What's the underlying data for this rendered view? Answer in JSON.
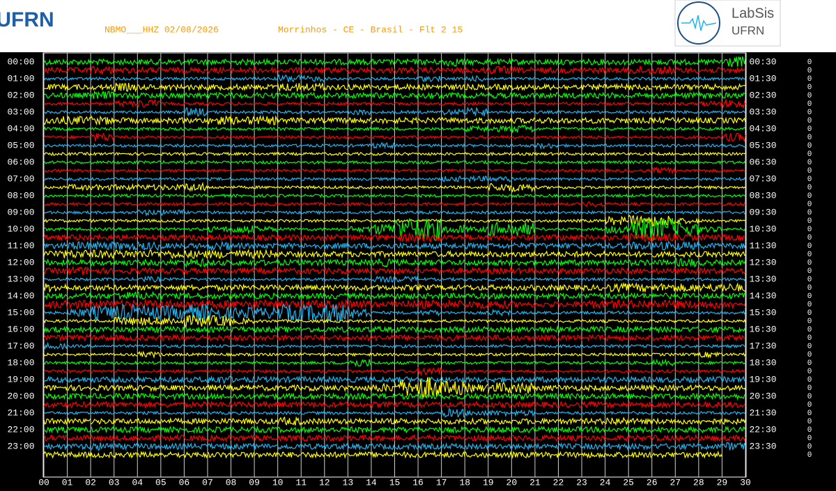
{
  "header": {
    "station": "NBMO___HHZ 02/08/2026",
    "location": "Morrinhos - CE - Brasil - Flt 2 15",
    "left_logo": "UFRN",
    "right_logo": "LabSis",
    "right_logo_sub": "UFRN"
  },
  "chart_data": {
    "type": "helicorder",
    "left_labels": [
      "00:00",
      "01:00",
      "02:00",
      "03:00",
      "04:00",
      "05:00",
      "06:00",
      "07:00",
      "08:00",
      "09:00",
      "10:00",
      "11:00",
      "12:00",
      "13:00",
      "14:00",
      "15:00",
      "16:00",
      "17:00",
      "18:00",
      "19:00",
      "20:00",
      "21:00",
      "22:00",
      "23:00"
    ],
    "right_labels": [
      "00:30",
      "01:30",
      "02:30",
      "03:30",
      "04:30",
      "05:30",
      "06:30",
      "07:30",
      "08:30",
      "09:30",
      "10:30",
      "11:30",
      "12:30",
      "13:30",
      "14:30",
      "15:30",
      "16:30",
      "17:30",
      "18:30",
      "19:30",
      "20:30",
      "21:30",
      "22:30",
      "23:30"
    ],
    "right_values": [
      0,
      0,
      0,
      0,
      0,
      0,
      0,
      0,
      0,
      0,
      0,
      0,
      0,
      0,
      0,
      0,
      0,
      0,
      0,
      0,
      0,
      0,
      0,
      0,
      0,
      0,
      0,
      0,
      0,
      0,
      0,
      0,
      0,
      0,
      0,
      0,
      0,
      0,
      0,
      0,
      0,
      0,
      0,
      0,
      0,
      0,
      0,
      0
    ],
    "xlim": [
      0,
      30
    ],
    "xticks": [
      {
        "value": 0,
        "label": "00"
      },
      {
        "value": 1,
        "label": "01"
      },
      {
        "value": 2,
        "label": "02"
      },
      {
        "value": 3,
        "label": "03"
      },
      {
        "value": 4,
        "label": "04"
      },
      {
        "value": 5,
        "label": "05"
      },
      {
        "value": 6,
        "label": "06"
      },
      {
        "value": 7,
        "label": "07"
      },
      {
        "value": 8,
        "label": "08"
      },
      {
        "value": 9,
        "label": "09"
      },
      10,
      11,
      12,
      13,
      14,
      15,
      16,
      17,
      18,
      19,
      20,
      21,
      22,
      23,
      24,
      25,
      26,
      27,
      28,
      29,
      30
    ],
    "grid": true,
    "colors": [
      "#00ff00",
      "#ff0000",
      "#1eb4f0",
      "#ffff00"
    ],
    "traces": [
      [
        2,
        2,
        2,
        2,
        2,
        2,
        2,
        2,
        2,
        2,
        2,
        2,
        2,
        2,
        2,
        2,
        2,
        3,
        2,
        2,
        2,
        2,
        2,
        2,
        2,
        2,
        2,
        2,
        2,
        4
      ],
      [
        2,
        2,
        3,
        2,
        2,
        2,
        2,
        2,
        2,
        2,
        2,
        2,
        2,
        2,
        2,
        2,
        2,
        2,
        2,
        3,
        2,
        2,
        2,
        2,
        2,
        3,
        3,
        2,
        2,
        2
      ],
      [
        1,
        1,
        1,
        1,
        1,
        1,
        1,
        1,
        1,
        1,
        3,
        2,
        1,
        1,
        1,
        1,
        2,
        1,
        2,
        1,
        1,
        1,
        1,
        1,
        1,
        1,
        1,
        1,
        1,
        1
      ],
      [
        2,
        2,
        2,
        3,
        2,
        2,
        2,
        2,
        2,
        2,
        3,
        3,
        2,
        2,
        2,
        2,
        2,
        2,
        2,
        2,
        2,
        2,
        2,
        2,
        2,
        2,
        2,
        2,
        2,
        2
      ],
      [
        2,
        2,
        3,
        2,
        2,
        2,
        2,
        2,
        2,
        2,
        2,
        2,
        2,
        2,
        2,
        2,
        2,
        2,
        2,
        2,
        2,
        2,
        2,
        2,
        2,
        2,
        2,
        2,
        2,
        2
      ],
      [
        1,
        1,
        1,
        2,
        3,
        1,
        1,
        1,
        1,
        1,
        1,
        1,
        1,
        1,
        1,
        1,
        1,
        1,
        1,
        1,
        1,
        1,
        1,
        1,
        1,
        1,
        1,
        1,
        2,
        3
      ],
      [
        1,
        1,
        1,
        1,
        1,
        1,
        3,
        1,
        1,
        1,
        1,
        1,
        1,
        2,
        1,
        1,
        1,
        2,
        3,
        1,
        1,
        1,
        1,
        1,
        1,
        1,
        1,
        1,
        1,
        1
      ],
      [
        3,
        3,
        3,
        2,
        2,
        2,
        2,
        3,
        3,
        3,
        2,
        2,
        2,
        2,
        2,
        2,
        2,
        2,
        2,
        2,
        2,
        2,
        2,
        2,
        2,
        2,
        2,
        2,
        2,
        2
      ],
      [
        1,
        1,
        1,
        1,
        1,
        1,
        1,
        1,
        1,
        1,
        1,
        1,
        1,
        1,
        1,
        1,
        1,
        1,
        2,
        2,
        3,
        1,
        1,
        1,
        1,
        1,
        1,
        1,
        1,
        1
      ],
      [
        1,
        1,
        3,
        1,
        1,
        1,
        1,
        1,
        1,
        1,
        1,
        1,
        1,
        1,
        1,
        1,
        1,
        1,
        1,
        1,
        1,
        1,
        1,
        1,
        1,
        1,
        1,
        1,
        1,
        3
      ],
      [
        1,
        1,
        1,
        1,
        1,
        1,
        1,
        1,
        1,
        1,
        1,
        1,
        1,
        1,
        2,
        1,
        1,
        1,
        1,
        1,
        1,
        2,
        1,
        1,
        1,
        1,
        1,
        1,
        1,
        1
      ],
      [
        1,
        1,
        1,
        1,
        1,
        1,
        1,
        1,
        1,
        1,
        1,
        1,
        1,
        1,
        1,
        1,
        1,
        1,
        1,
        1,
        1,
        1,
        1,
        1,
        1,
        1,
        1,
        1,
        1,
        1
      ],
      [
        1,
        1,
        1,
        1,
        1,
        1,
        1,
        1,
        1,
        1,
        1,
        1,
        1,
        1,
        1,
        1,
        1,
        1,
        1,
        1,
        1,
        1,
        1,
        1,
        1,
        1,
        1,
        1,
        1,
        1
      ],
      [
        1,
        1,
        1,
        1,
        1,
        1,
        1,
        1,
        1,
        1,
        1,
        1,
        1,
        1,
        1,
        1,
        1,
        1,
        1,
        1,
        1,
        1,
        1,
        1,
        1,
        1,
        2,
        1,
        1,
        1
      ],
      [
        1,
        1,
        1,
        1,
        1,
        1,
        1,
        1,
        1,
        1,
        1,
        1,
        1,
        1,
        1,
        1,
        1,
        2,
        2,
        2,
        1,
        1,
        1,
        1,
        1,
        1,
        1,
        1,
        1,
        1
      ],
      [
        1,
        2,
        2,
        2,
        2,
        2,
        3,
        1,
        1,
        1,
        1,
        1,
        1,
        1,
        1,
        1,
        1,
        1,
        1,
        3,
        3,
        1,
        1,
        1,
        1,
        1,
        1,
        1,
        1,
        1
      ],
      [
        1,
        1,
        1,
        1,
        1,
        1,
        1,
        1,
        1,
        1,
        1,
        1,
        1,
        1,
        1,
        1,
        1,
        1,
        1,
        1,
        1,
        1,
        1,
        1,
        1,
        1,
        1,
        1,
        1,
        1
      ],
      [
        1,
        1,
        1,
        1,
        1,
        1,
        1,
        1,
        1,
        1,
        1,
        1,
        1,
        1,
        1,
        1,
        1,
        1,
        1,
        1,
        1,
        1,
        1,
        2,
        1,
        1,
        1,
        1,
        1,
        1
      ],
      [
        1,
        1,
        1,
        1,
        2,
        2,
        1,
        1,
        1,
        1,
        1,
        1,
        1,
        1,
        1,
        1,
        1,
        1,
        1,
        1,
        1,
        1,
        1,
        1,
        1,
        1,
        1,
        1,
        1,
        1
      ],
      [
        1,
        1,
        1,
        1,
        1,
        1,
        1,
        1,
        1,
        1,
        1,
        1,
        1,
        1,
        1,
        1,
        1,
        1,
        1,
        1,
        1,
        1,
        1,
        1,
        3,
        4,
        4,
        2,
        1,
        1
      ],
      [
        1,
        1,
        1,
        1,
        1,
        1,
        1,
        2,
        3,
        2,
        1,
        1,
        1,
        2,
        4,
        8,
        8,
        3,
        2,
        5,
        5,
        1,
        1,
        1,
        3,
        8,
        8,
        5,
        2,
        1
      ],
      [
        2,
        2,
        2,
        2,
        2,
        2,
        2,
        2,
        2,
        2,
        2,
        2,
        2,
        2,
        2,
        3,
        3,
        2,
        2,
        2,
        2,
        2,
        2,
        2,
        2,
        3,
        3,
        2,
        2,
        2
      ],
      [
        2,
        3,
        3,
        3,
        3,
        2,
        2,
        3,
        2,
        2,
        2,
        2,
        2,
        2,
        2,
        2,
        2,
        2,
        2,
        2,
        2,
        2,
        2,
        2,
        2,
        3,
        3,
        3,
        2,
        2
      ],
      [
        3,
        3,
        3,
        3,
        3,
        3,
        3,
        3,
        3,
        3,
        2,
        2,
        2,
        2,
        2,
        2,
        2,
        2,
        2,
        2,
        2,
        2,
        2,
        2,
        2,
        2,
        2,
        2,
        2,
        2
      ],
      [
        2,
        2,
        2,
        2,
        2,
        2,
        3,
        2,
        2,
        2,
        2,
        2,
        2,
        2,
        3,
        2,
        2,
        2,
        2,
        2,
        2,
        2,
        2,
        2,
        2,
        2,
        2,
        3,
        2,
        2
      ],
      [
        2,
        3,
        2,
        2,
        2,
        2,
        2,
        2,
        2,
        2,
        2,
        2,
        2,
        2,
        2,
        2,
        2,
        2,
        2,
        2,
        2,
        2,
        2,
        2,
        2,
        2,
        2,
        2,
        2,
        2
      ],
      [
        1,
        1,
        1,
        1,
        2,
        1,
        1,
        1,
        1,
        1,
        1,
        1,
        1,
        1,
        2,
        2,
        1,
        1,
        1,
        1,
        1,
        1,
        1,
        1,
        1,
        1,
        1,
        1,
        1,
        1
      ],
      [
        3,
        2,
        2,
        2,
        2,
        2,
        2,
        2,
        2,
        2,
        2,
        2,
        2,
        2,
        2,
        2,
        2,
        2,
        2,
        2,
        2,
        2,
        2,
        2,
        3,
        3,
        3,
        3,
        3,
        3
      ],
      [
        2,
        2,
        2,
        3,
        3,
        2,
        2,
        2,
        2,
        2,
        2,
        2,
        2,
        2,
        2,
        2,
        2,
        2,
        2,
        2,
        2,
        2,
        2,
        2,
        2,
        2,
        2,
        2,
        2,
        2
      ],
      [
        3,
        3,
        3,
        3,
        3,
        3,
        3,
        3,
        3,
        3,
        3,
        3,
        3,
        3,
        2,
        3,
        3,
        3,
        3,
        3,
        2,
        2,
        2,
        3,
        3,
        3,
        3,
        3,
        3,
        3
      ],
      [
        1,
        3,
        5,
        6,
        5,
        5,
        6,
        5,
        4,
        4,
        6,
        6,
        7,
        4,
        1,
        1,
        2,
        1,
        1,
        2,
        1,
        1,
        1,
        1,
        1,
        1,
        1,
        1,
        1,
        1
      ],
      [
        1,
        1,
        1,
        3,
        3,
        3,
        4,
        4,
        2,
        1,
        1,
        1,
        1,
        1,
        1,
        1,
        1,
        1,
        1,
        1,
        1,
        1,
        1,
        1,
        1,
        1,
        1,
        1,
        1,
        1
      ],
      [
        2,
        2,
        2,
        2,
        2,
        2,
        2,
        2,
        2,
        2,
        2,
        2,
        2,
        2,
        2,
        2,
        2,
        2,
        2,
        2,
        2,
        2,
        2,
        2,
        2,
        2,
        2,
        2,
        2,
        2
      ],
      [
        2,
        2,
        2,
        2,
        2,
        2,
        2,
        2,
        2,
        2,
        2,
        2,
        2,
        2,
        2,
        2,
        2,
        2,
        2,
        2,
        2,
        2,
        2,
        2,
        2,
        2,
        2,
        2,
        2,
        2
      ],
      [
        2,
        1,
        1,
        1,
        1,
        1,
        1,
        1,
        1,
        1,
        1,
        1,
        1,
        1,
        1,
        1,
        1,
        1,
        1,
        1,
        1,
        1,
        1,
        1,
        1,
        1,
        1,
        1,
        1,
        1
      ],
      [
        1,
        1,
        1,
        1,
        2,
        1,
        1,
        1,
        1,
        1,
        1,
        1,
        1,
        1,
        1,
        1,
        1,
        1,
        1,
        1,
        1,
        1,
        1,
        1,
        1,
        1,
        1,
        1,
        2,
        1
      ],
      [
        1,
        1,
        1,
        1,
        1,
        1,
        1,
        1,
        1,
        1,
        1,
        1,
        1,
        3,
        1,
        1,
        1,
        1,
        1,
        1,
        1,
        1,
        1,
        1,
        1,
        1,
        2,
        1,
        1,
        1
      ],
      [
        1,
        1,
        1,
        1,
        1,
        1,
        1,
        1,
        1,
        1,
        1,
        1,
        1,
        1,
        1,
        1,
        3,
        1,
        1,
        1,
        1,
        1,
        1,
        1,
        1,
        1,
        1,
        1,
        1,
        1
      ],
      [
        2,
        2,
        2,
        2,
        2,
        2,
        2,
        3,
        2,
        2,
        2,
        2,
        2,
        2,
        2,
        2,
        2,
        2,
        2,
        2,
        2,
        2,
        2,
        2,
        2,
        2,
        2,
        2,
        2,
        2
      ],
      [
        2,
        2,
        2,
        2,
        2,
        2,
        2,
        2,
        2,
        2,
        2,
        2,
        2,
        2,
        3,
        6,
        8,
        5,
        3,
        4,
        4,
        2,
        2,
        2,
        2,
        2,
        2,
        2,
        2,
        2
      ],
      [
        2,
        2,
        2,
        2,
        2,
        2,
        2,
        2,
        2,
        2,
        2,
        2,
        2,
        2,
        2,
        2,
        2,
        2,
        2,
        2,
        2,
        2,
        2,
        2,
        2,
        2,
        2,
        2,
        2,
        2
      ],
      [
        2,
        2,
        2,
        2,
        2,
        2,
        2,
        2,
        2,
        2,
        2,
        2,
        2,
        2,
        2,
        2,
        2,
        2,
        2,
        2,
        2,
        2,
        2,
        2,
        2,
        2,
        2,
        2,
        2,
        2
      ],
      [
        1,
        1,
        1,
        1,
        1,
        1,
        1,
        1,
        1,
        1,
        1,
        1,
        1,
        1,
        1,
        1,
        1,
        3,
        2,
        2,
        2,
        1,
        1,
        1,
        1,
        1,
        1,
        1,
        1,
        1
      ],
      [
        2,
        2,
        2,
        2,
        2,
        2,
        2,
        2,
        2,
        2,
        3,
        2,
        2,
        2,
        2,
        2,
        2,
        2,
        2,
        2,
        2,
        2,
        2,
        2,
        3,
        2,
        2,
        2,
        2,
        2
      ],
      [
        2,
        2,
        2,
        2,
        2,
        2,
        2,
        2,
        2,
        2,
        2,
        2,
        2,
        2,
        2,
        2,
        2,
        2,
        2,
        2,
        2,
        2,
        2,
        2,
        2,
        2,
        2,
        2,
        2,
        2
      ],
      [
        2,
        2,
        2,
        2,
        2,
        2,
        2,
        2,
        2,
        2,
        2,
        2,
        2,
        2,
        2,
        2,
        2,
        2,
        2,
        2,
        2,
        2,
        2,
        2,
        2,
        2,
        2,
        2,
        2,
        2
      ],
      [
        2,
        2,
        3,
        2,
        2,
        2,
        2,
        2,
        2,
        2,
        2,
        2,
        2,
        2,
        2,
        2,
        2,
        2,
        2,
        2,
        2,
        2,
        2,
        2,
        2,
        2,
        2,
        2,
        2,
        3
      ],
      [
        2,
        2,
        2,
        2,
        2,
        2,
        2,
        2,
        2,
        2,
        2,
        2,
        2,
        2,
        2,
        2,
        2,
        2,
        2,
        2,
        2,
        2,
        2,
        2,
        2,
        2,
        2,
        2,
        2,
        null
      ]
    ]
  }
}
